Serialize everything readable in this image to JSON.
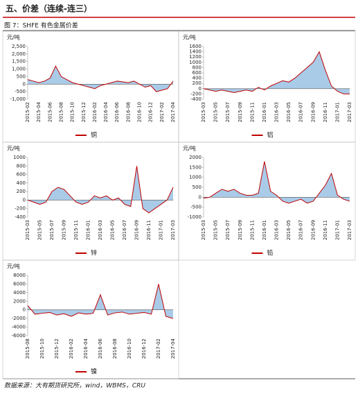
{
  "header": {
    "title": "五、价差（连续-连三）",
    "figure": "图 7：SHFE 有色金属价差",
    "source": "数据来源：大有期货研究所，wind，WBMS，CRU"
  },
  "chart_data": [
    {
      "type": "line",
      "ylabel": "元/吨",
      "area_color": "#a9cbe8",
      "categories": [
        "2015-02",
        null,
        "2015-04",
        null,
        "2015-06",
        null,
        "2015-08",
        null,
        "2015-10",
        null,
        "2015-12",
        null,
        "2016-02",
        null,
        "2016-04",
        null,
        "2016-06",
        null,
        "2016-08",
        null,
        "2016-10",
        null,
        "2016-12",
        null,
        "2017-02",
        null,
        "2017-04"
      ],
      "series": [
        {
          "name": "铜",
          "color": "#c00000",
          "values": [
            300,
            200,
            100,
            200,
            400,
            1200,
            500,
            300,
            100,
            0,
            -100,
            -200,
            -300,
            -100,
            0,
            100,
            200,
            150,
            100,
            200,
            0,
            -200,
            -100,
            -500,
            -400,
            -300,
            200
          ]
        }
      ],
      "ylim": [
        -1000,
        2500
      ],
      "yticks": [
        {
          "value": -1000,
          "label": "-1,000"
        },
        -500,
        0,
        500,
        {
          "value": 1000,
          "label": "1,000"
        },
        {
          "value": 1500,
          "label": "1,500"
        },
        {
          "value": 2000,
          "label": "2,000"
        },
        {
          "value": 2500,
          "label": "2,500"
        }
      ]
    },
    {
      "type": "line",
      "ylabel": "元/吨",
      "area_color": "#a9cbe8",
      "categories": [
        "2015-03",
        null,
        "2015-05",
        null,
        "2015-07",
        null,
        "2015-09",
        null,
        "2015-11",
        null,
        "2016-01",
        null,
        "2016-03",
        null,
        "2016-05",
        null,
        "2016-07",
        null,
        "2016-09",
        null,
        "2016-11",
        null,
        "2017-01",
        null,
        "2017-03"
      ],
      "series": [
        {
          "name": "铝",
          "color": "#c00000",
          "values": [
            0,
            -50,
            -100,
            -50,
            -100,
            -150,
            -100,
            -50,
            -100,
            50,
            -50,
            100,
            200,
            300,
            250,
            400,
            600,
            800,
            1000,
            1400,
            700,
            100,
            -100,
            -200,
            -200
          ]
        }
      ],
      "ylim": [
        -400,
        1600
      ],
      "yticks": [
        -400,
        -200,
        0,
        200,
        400,
        600,
        800,
        1000,
        1200,
        1400,
        1600
      ]
    },
    {
      "type": "line",
      "ylabel": "元/吨",
      "area_color": "#a9cbe8",
      "categories": [
        "2015-03",
        null,
        "2015-05",
        null,
        "2015-07",
        null,
        "2015-09",
        null,
        "2015-11",
        null,
        "2016-01",
        null,
        "2016-03",
        null,
        "2016-05",
        null,
        "2016-07",
        null,
        "2016-09",
        null,
        "2016-11",
        null,
        "2017-01",
        null,
        "2017-03"
      ],
      "series": [
        {
          "name": "锌",
          "color": "#c00000",
          "values": [
            0,
            -50,
            -100,
            -50,
            200,
            300,
            250,
            100,
            -50,
            -100,
            -50,
            100,
            50,
            100,
            0,
            50,
            -100,
            -150,
            800,
            -200,
            -300,
            -200,
            -100,
            0,
            300
          ]
        }
      ],
      "ylim": [
        -400,
        1000
      ],
      "yticks": [
        -400,
        -200,
        0,
        200,
        400,
        600,
        800,
        1000
      ]
    },
    {
      "type": "line",
      "ylabel": "元/吨",
      "area_color": "#a9cbe8",
      "categories": [
        "2015-03",
        null,
        "2015-05",
        null,
        "2015-07",
        null,
        "2015-09",
        null,
        "2015-11",
        null,
        "2016-01",
        null,
        "2016-03",
        null,
        "2016-05",
        null,
        "2016-07",
        null,
        "2016-09",
        null,
        "2016-11",
        null,
        "2017-01",
        null,
        "2017-03"
      ],
      "series": [
        {
          "name": "铅",
          "color": "#c00000",
          "values": [
            -50,
            0,
            200,
            400,
            300,
            400,
            200,
            100,
            100,
            200,
            1800,
            300,
            100,
            -200,
            -300,
            -200,
            -100,
            -300,
            -200,
            200,
            600,
            1200,
            100,
            -100,
            -200
          ]
        }
      ],
      "ylim": [
        -1000,
        2000
      ],
      "yticks": [
        -1000,
        -500,
        0,
        500,
        1000,
        1500,
        2000
      ]
    },
    {
      "type": "line",
      "ylabel": "元/吨",
      "area_color": "#a9cbe8",
      "categories": [
        "2015-08",
        null,
        "2015-10",
        null,
        "2015-12",
        null,
        "2016-02",
        null,
        "2016-04",
        null,
        "2016-06",
        null,
        "2016-08",
        null,
        "2016-10",
        null,
        "2016-12",
        null,
        "2017-02",
        null,
        "2017-04"
      ],
      "series": [
        {
          "name": "镍",
          "color": "#c00000",
          "values": [
            1000,
            -1000,
            -800,
            -600,
            -1200,
            -900,
            -1500,
            -700,
            -1000,
            -800,
            3500,
            -1200,
            -700,
            -500,
            -1000,
            -800,
            -600,
            -1000,
            6000,
            -1500,
            -2000
          ]
        }
      ],
      "ylim": [
        -6000,
        8000
      ],
      "yticks": [
        -6000,
        -4000,
        -2000,
        0,
        2000,
        4000,
        6000,
        8000
      ]
    }
  ]
}
